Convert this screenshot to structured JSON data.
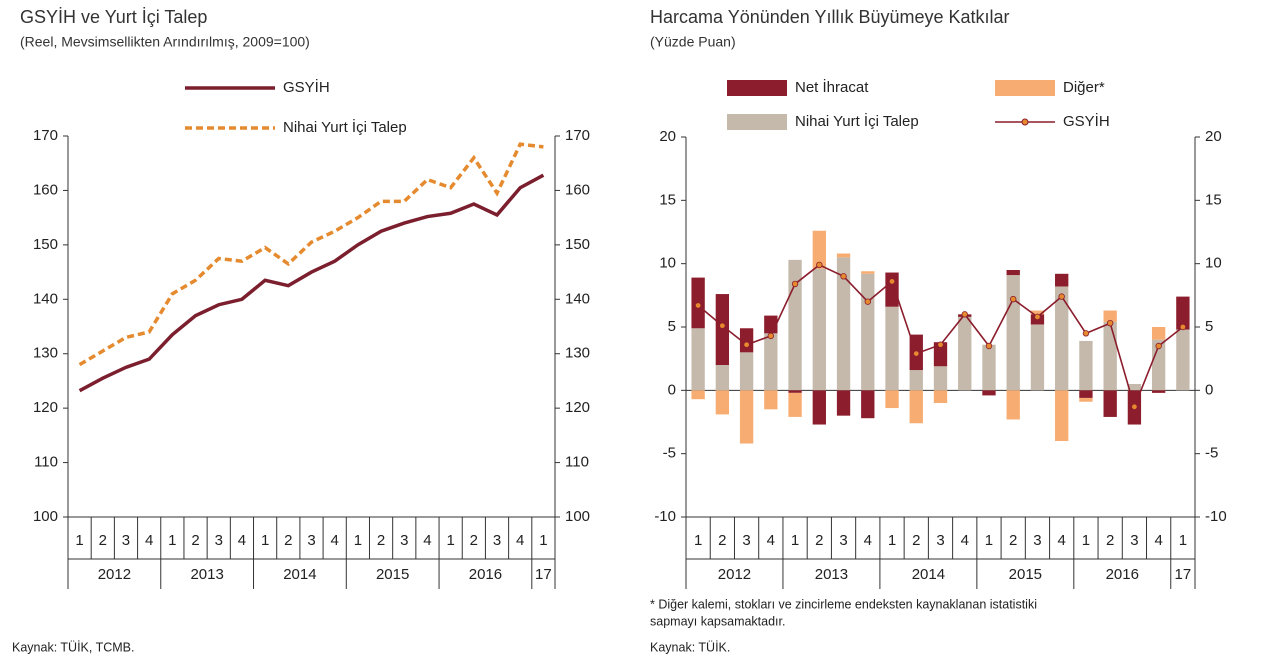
{
  "chart_data": [
    {
      "type": "line",
      "title": "GSYİH ve Yurt İçi Talep",
      "subtitle": "(Reel, Mevsimsellikten Arındırılmış, 2009=100)",
      "categories": [
        "1",
        "2",
        "3",
        "4",
        "1",
        "2",
        "3",
        "4",
        "1",
        "2",
        "3",
        "4",
        "1",
        "2",
        "3",
        "4",
        "1",
        "2",
        "3",
        "4",
        "1"
      ],
      "year_labels": [
        "2012",
        "2013",
        "2014",
        "2015",
        "2016",
        "17"
      ],
      "series": [
        {
          "name": "GSYİH",
          "color": "#7b1f2e",
          "line_style": "solid",
          "values": [
            123.2,
            125.5,
            127.5,
            129,
            133.5,
            137,
            139,
            140,
            143.5,
            142.5,
            145,
            147,
            150,
            152.5,
            154,
            155.2,
            155.8,
            157.5,
            155.5,
            160.5,
            162.8
          ]
        },
        {
          "name": "Nihai Yurt İçi Talep",
          "color": "#e58a2e",
          "line_style": "dashed",
          "values": [
            128,
            130.5,
            133,
            134,
            141,
            143.5,
            147.5,
            147,
            149.5,
            146.5,
            150.5,
            152.5,
            155,
            158,
            158,
            162,
            160.5,
            166,
            159.5,
            168.5,
            168
          ]
        }
      ],
      "ylim": [
        100,
        170
      ],
      "yticks": [
        100,
        110,
        120,
        130,
        140,
        150,
        160,
        170
      ],
      "y2lim": [
        100,
        170
      ],
      "y2ticks": [
        100,
        110,
        120,
        130,
        140,
        150,
        160,
        170
      ],
      "source": "Kaynak: TÜİK, TCMB."
    },
    {
      "type": "bar",
      "title": "Harcama Yönünden Yıllık Büyümeye Katkılar",
      "subtitle": "(Yüzde Puan)",
      "stacked": true,
      "categories": [
        "1",
        "2",
        "3",
        "4",
        "1",
        "2",
        "3",
        "4",
        "1",
        "2",
        "3",
        "4",
        "1",
        "2",
        "3",
        "4",
        "1",
        "2",
        "3",
        "4",
        "1"
      ],
      "year_labels": [
        "2012",
        "2013",
        "2014",
        "2015",
        "2016",
        "17"
      ],
      "series": [
        {
          "name": "Nihai Yurt İçi Talep",
          "color": "#c5b9ab",
          "values": [
            4.9,
            2.0,
            3.0,
            4.5,
            10.3,
            9.6,
            10.5,
            9.2,
            6.6,
            1.6,
            1.9,
            5.8,
            3.6,
            9.1,
            5.2,
            8.2,
            3.9,
            5.4,
            0.5,
            4.0,
            4.8
          ]
        },
        {
          "name": "Net İhracat",
          "color": "#8b1d2c",
          "values": [
            4.0,
            5.6,
            1.9,
            1.4,
            -0.2,
            -2.7,
            -2.0,
            -2.2,
            2.7,
            2.8,
            1.9,
            0.2,
            -0.4,
            0.4,
            0.8,
            1.0,
            -0.6,
            -2.1,
            -2.7,
            -0.2,
            2.6
          ]
        },
        {
          "name": "Diğer*",
          "color": "#f7ad72",
          "values": [
            -0.7,
            -1.9,
            -4.2,
            -1.5,
            -1.9,
            3.0,
            0.3,
            0.2,
            -1.4,
            -2.6,
            -1.0,
            0,
            0,
            -2.3,
            0.3,
            -4.0,
            -0.3,
            0.9,
            0,
            1.0,
            0
          ]
        },
        {
          "name": "GSYİH",
          "color": "#8b1d2c",
          "type": "line",
          "marker_color": "#e58a2e",
          "values": [
            6.7,
            5.1,
            3.6,
            4.3,
            8.4,
            9.9,
            9.0,
            7.0,
            8.6,
            2.9,
            3.6,
            6.0,
            3.5,
            7.2,
            5.8,
            7.4,
            4.5,
            5.3,
            -1.3,
            3.5,
            5.0
          ]
        }
      ],
      "ylim": [
        -10,
        20
      ],
      "yticks": [
        -10,
        -5,
        0,
        5,
        10,
        15,
        20
      ],
      "y2lim": [
        -10,
        20
      ],
      "y2ticks": [
        -10,
        -5,
        0,
        5,
        10,
        15,
        20
      ],
      "footnote": [
        "*  Diğer kalemi, stokları ve zincirleme endeksten kaynaklanan istatistiki",
        "sapmayı kapsamaktadır."
      ],
      "source": "Kaynak: TÜİK."
    }
  ]
}
